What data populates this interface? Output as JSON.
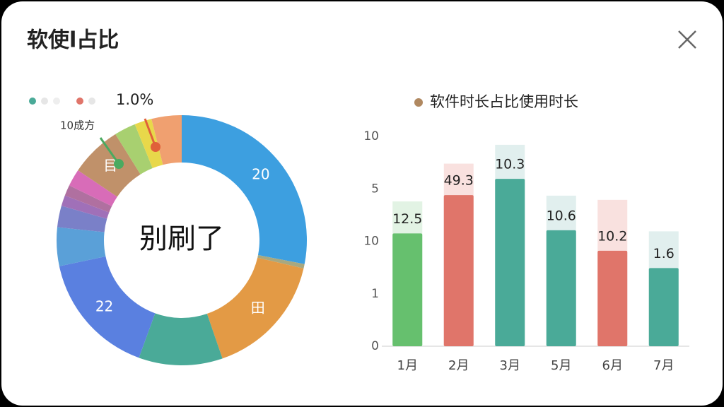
{
  "title": "软使l占比",
  "chart_data": [
    {
      "type": "donut",
      "center_text": "别刷了",
      "categories": [
        "20",
        null,
        "田",
        null,
        "22",
        null,
        null,
        null,
        null,
        null,
        "目",
        null,
        null,
        null
      ],
      "values": [
        101,
        2,
        58,
        39,
        58,
        18,
        10,
        5,
        5,
        8,
        24,
        10,
        8,
        14
      ],
      "colors": [
        "#3d9fe0",
        "#a8a880",
        "#e39a45",
        "#4aaa98",
        "#5a80e0",
        "#5aa0d8",
        "#7a80c8",
        "#a070b8",
        "#b070a0",
        "#d86cb8",
        "#c0916a",
        "#a8d070",
        "#e8d84a",
        "#f0a070"
      ],
      "annotations": [
        "1.0%",
        "10成方"
      ]
    },
    {
      "type": "bar",
      "legend": "软件时长占比使用时长",
      "legend_color": "#b08860",
      "categories": [
        "1月",
        "2月",
        "3月",
        "5月",
        "6月",
        "7月"
      ],
      "values": [
        2.15,
        2.88,
        3.19,
        2.21,
        1.82,
        1.49
      ],
      "back_values": [
        2.76,
        3.48,
        3.84,
        2.87,
        2.79,
        2.19
      ],
      "labels": [
        "12.5",
        "49.3",
        "10.3",
        "10.6",
        "10.2",
        "1.6"
      ],
      "colors": [
        "#66c06e",
        "#e0756a",
        "#4aaa98",
        "#4aaa98",
        "#e0756a",
        "#4aaa98"
      ],
      "back_colors": [
        "#e2f3e4",
        "#f9e1df",
        "#e1efee",
        "#e1efee",
        "#f9e1df",
        "#e1efee"
      ],
      "ylim": [
        0,
        4
      ],
      "yticks": [
        0,
        1,
        {
          "value": 2,
          "label": "10"
        },
        {
          "value": 3,
          "label": "5"
        },
        {
          "value": 4,
          "label": "10"
        }
      ]
    }
  ]
}
